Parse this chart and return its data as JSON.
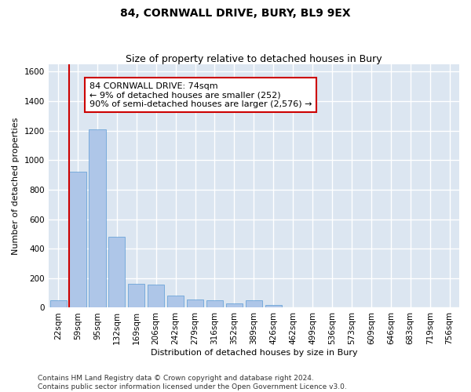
{
  "title": "84, CORNWALL DRIVE, BURY, BL9 9EX",
  "subtitle": "Size of property relative to detached houses in Bury",
  "xlabel": "Distribution of detached houses by size in Bury",
  "ylabel": "Number of detached properties",
  "categories": [
    "22sqm",
    "59sqm",
    "95sqm",
    "132sqm",
    "169sqm",
    "206sqm",
    "242sqm",
    "279sqm",
    "316sqm",
    "352sqm",
    "389sqm",
    "426sqm",
    "462sqm",
    "499sqm",
    "536sqm",
    "573sqm",
    "609sqm",
    "646sqm",
    "683sqm",
    "719sqm",
    "756sqm"
  ],
  "values": [
    50,
    920,
    1210,
    480,
    160,
    155,
    80,
    55,
    50,
    30,
    50,
    20,
    0,
    0,
    0,
    0,
    0,
    0,
    0,
    0,
    0
  ],
  "bar_color": "#aec6e8",
  "bar_edge_color": "#5b9bd5",
  "background_color": "#dce6f1",
  "grid_color": "#ffffff",
  "ylim": [
    0,
    1650
  ],
  "yticks": [
    0,
    200,
    400,
    600,
    800,
    1000,
    1200,
    1400,
    1600
  ],
  "property_label": "84 CORNWALL DRIVE: 74sqm",
  "annotation_line1": "← 9% of detached houses are smaller (252)",
  "annotation_line2": "90% of semi-detached houses are larger (2,576) →",
  "vline_color": "#cc0000",
  "annotation_box_color": "#ffffff",
  "annotation_box_edge": "#cc0000",
  "footer": "Contains HM Land Registry data © Crown copyright and database right 2024.\nContains public sector information licensed under the Open Government Licence v3.0.",
  "title_fontsize": 10,
  "subtitle_fontsize": 9,
  "label_fontsize": 8,
  "tick_fontsize": 7.5,
  "annot_fontsize": 8,
  "footer_fontsize": 6.5
}
